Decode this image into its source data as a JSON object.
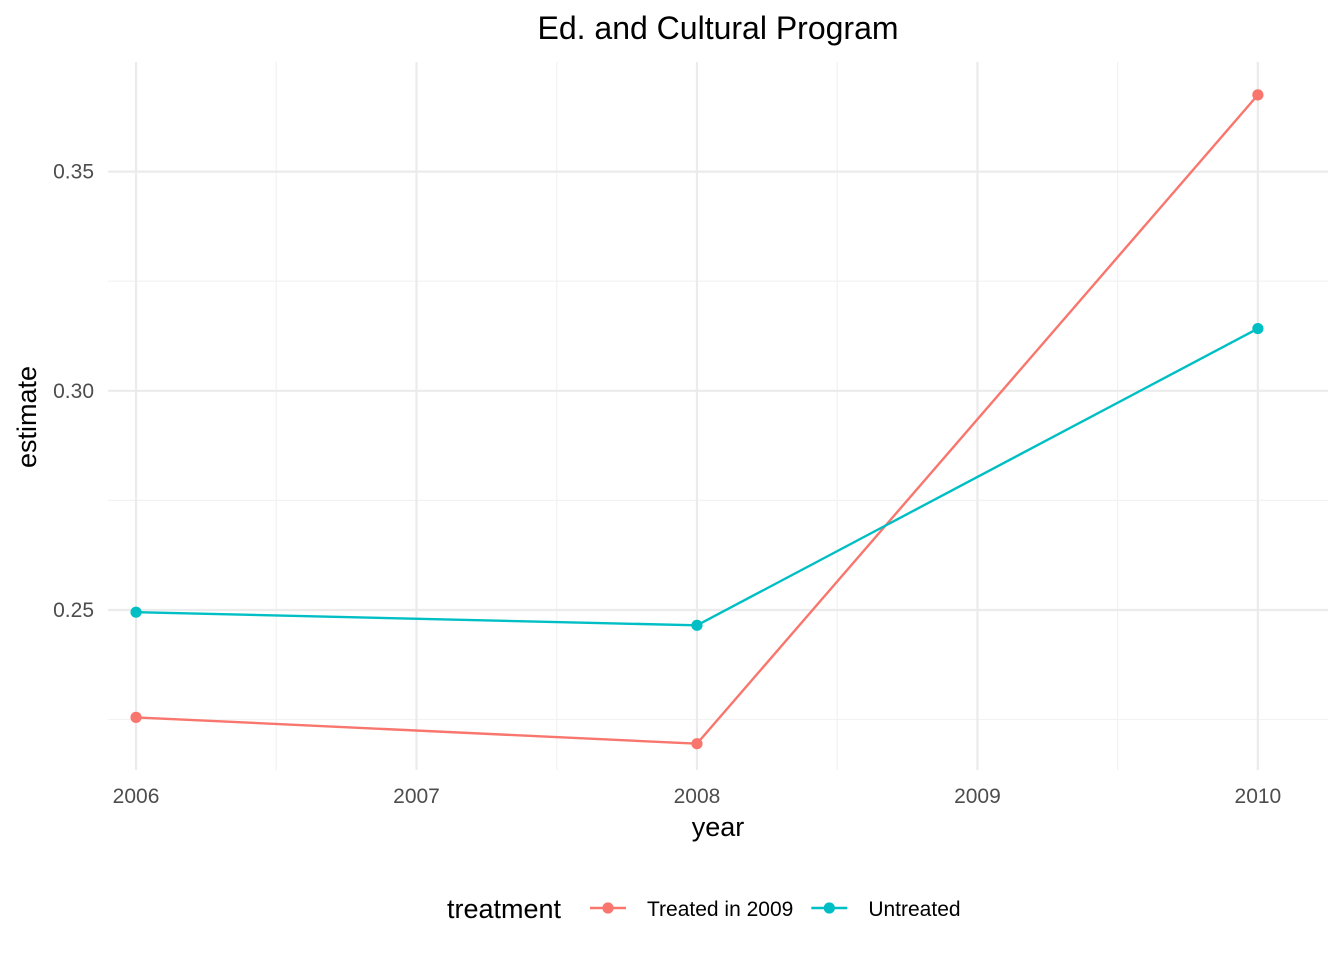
{
  "chart_data": {
    "type": "line",
    "title": "Ed. and Cultural Program",
    "xlabel": "year",
    "ylabel": "estimate",
    "x": [
      2006,
      2008,
      2010
    ],
    "x_ticks": [
      "2006",
      "2007",
      "2008",
      "2009",
      "2010"
    ],
    "y_ticks": [
      "0.25",
      "0.30",
      "0.35"
    ],
    "xlim": [
      2005.9,
      2010.25
    ],
    "ylim": [
      0.2135,
      0.375
    ],
    "grid": true,
    "legend": {
      "title": "treatment",
      "position": "bottom"
    },
    "series": [
      {
        "name": "Treated in 2009",
        "color": "#F8766D",
        "values": [
          0.2255,
          0.2195,
          0.3675
        ]
      },
      {
        "name": "Untreated",
        "color": "#00BFC4",
        "values": [
          0.2495,
          0.2465,
          0.3142
        ]
      }
    ]
  }
}
